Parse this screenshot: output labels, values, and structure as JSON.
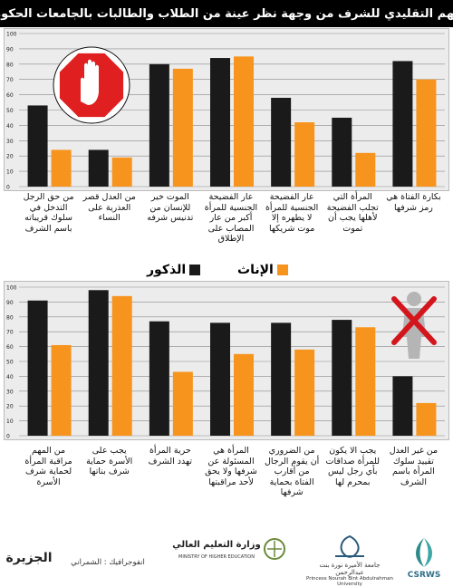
{
  "title": "الفهم التقليدي للشرف من وجهة نظر عينة من الطلاب والطالبات بالجامعات الحكومية",
  "legend": {
    "male": "الذكور",
    "female": "الإناث"
  },
  "colors": {
    "male": "#1a1a1a",
    "female": "#f7941d",
    "stop_sign": "#e02020",
    "cross": "#d4151c"
  },
  "icons": {
    "top": "stop-hand-sign",
    "bottom": "person-with-red-cross"
  },
  "footer": {
    "credit": "انفوجرافيك : الشمراني",
    "logo_jazirah": "الجزيرة",
    "logo_ministry_ar": "وزارة التعليم العالي",
    "logo_ministry_en": "MINISTRY OF HIGHER EDUCATION",
    "logo_university_ar": "جامعة الأميرة نورة بنت عبدالرحمن",
    "logo_university_en": "Princess Nourah Bint Abdulrahman University",
    "logo_csrws": "CSRWS"
  },
  "chart_data": [
    {
      "type": "bar",
      "ylim": [
        0,
        100
      ],
      "ticks": [
        "0",
        "10",
        "20",
        "30",
        "40",
        "50",
        "60",
        "70",
        "80",
        "90",
        "100"
      ],
      "categories": [
        "من حق الرجل التدخل في سلوك قريباته باسم الشرف",
        "من العدل قصر العذرية على النساء",
        "الموت خير للإنسان من تدنيس شرفه",
        "عار الفضيحة الجنسية للمرأة أكبر من عار المصاب على الإطلاق",
        "عار الفضيحة الجنسية للمرأة لا يطهره إلا موت شريكها",
        "المرأة التي تجلب الفضيحة لأهلها يجب أن تموت",
        "بكارة الفتاة هي رمز شرفها"
      ],
      "series": [
        {
          "name": "الذكور",
          "values": [
            53,
            24,
            80,
            84,
            58,
            45,
            82
          ]
        },
        {
          "name": "الإناث",
          "values": [
            24,
            19,
            77,
            85,
            42,
            22,
            70
          ]
        }
      ]
    },
    {
      "type": "bar",
      "ylim": [
        0,
        100
      ],
      "ticks": [
        "0",
        "10",
        "20",
        "30",
        "40",
        "50",
        "60",
        "70",
        "80",
        "90",
        "100"
      ],
      "categories": [
        "من المهم مراقبة المرأة لحماية شرف الأسرة",
        "يجب على الأسرة حماية شرف بناتها",
        "حرية المرأة تهدد الشرف",
        "المرأة هي المسئولة عن شرفها ولا يحق لأحد مراقبتها",
        "من الضروري أن يقوم الرجال من أقارب الفتاة بحماية شرفها",
        "يجب الا يكون للمرأة صداقات بأي رجل ليس بمحرم لها",
        "من غير العدل تقييد سلوك المرأة باسم الشرف"
      ],
      "series": [
        {
          "name": "الذكور",
          "values": [
            91,
            98,
            77,
            76,
            76,
            78,
            40
          ]
        },
        {
          "name": "الإناث",
          "values": [
            61,
            94,
            43,
            55,
            58,
            73,
            22
          ]
        }
      ]
    }
  ]
}
